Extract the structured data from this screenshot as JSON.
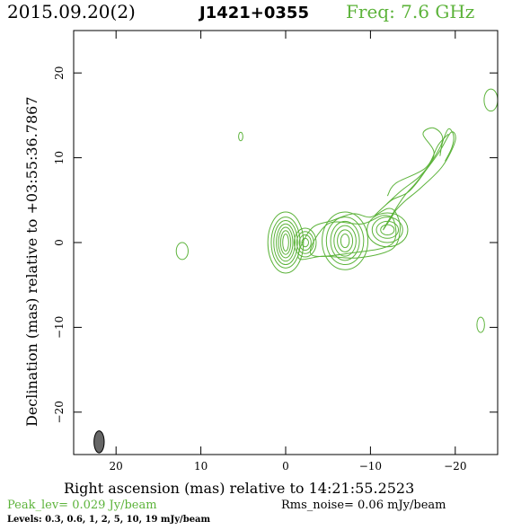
{
  "header": {
    "date": "2015.09.20(2)",
    "source": "J1421+0355",
    "freq": "Freq: 7.6 GHz"
  },
  "footer": {
    "peak": "Peak_lev=  0.029 Jy/beam",
    "rms": "Rms_noise= 0.06 mJy/beam",
    "levels": "Levels: 0.3, 0.6,    1,    2,    5,   10,   19 mJy/beam"
  },
  "colors": {
    "contour": "#5cb33a",
    "beam": "#666666",
    "axes": "#000000"
  },
  "chart_data": {
    "type": "contour",
    "xlabel": "Right ascension (mas) relative to 14:21:55.2523",
    "ylabel": "Declination (mas) relative to +03:55:36.7867",
    "xlim": [
      25,
      -25
    ],
    "ylim": [
      -25,
      25
    ],
    "xticks": [
      20,
      10,
      0,
      -10,
      -20
    ],
    "xtick_labels": [
      "20",
      "10",
      "0",
      "−10",
      "−20"
    ],
    "yticks": [
      20,
      10,
      0,
      -10,
      -20
    ],
    "ytick_labels": [
      "20",
      "10",
      "0",
      "−10",
      "−20"
    ],
    "contour_levels_mJy": [
      0.3,
      0.6,
      1,
      2,
      5,
      10,
      19
    ],
    "beam": {
      "x": 22,
      "y": -23.5,
      "major": 2.6,
      "minor": 1.2
    },
    "components": [
      {
        "name": "core",
        "x": 0.0,
        "y": 0.0,
        "rx": [
          0.35,
          0.6,
          0.85,
          1.1,
          1.4,
          1.7,
          2.1
        ],
        "ry": [
          1.0,
          1.4,
          1.8,
          2.2,
          2.6,
          3.0,
          3.6
        ]
      },
      {
        "name": "core-east-knot",
        "x": -2.3,
        "y": 0.0,
        "rx": [
          0.4,
          0.7,
          1.0,
          1.3
        ],
        "ry": [
          0.5,
          0.9,
          1.3,
          1.7
        ]
      },
      {
        "name": "knot-b",
        "x": -7.0,
        "y": 0.2,
        "rx": [
          0.5,
          0.9,
          1.3,
          1.7,
          2.2,
          2.7
        ],
        "ry": [
          0.8,
          1.3,
          1.8,
          2.3,
          2.8,
          3.4
        ]
      },
      {
        "name": "knot-c",
        "x": -12.0,
        "y": 1.5,
        "rx": [
          0.8,
          1.3,
          1.8,
          2.4
        ],
        "ry": [
          0.6,
          1.0,
          1.5,
          2.0
        ]
      },
      {
        "name": "isolated-east",
        "x": 12.2,
        "y": -1.0,
        "rx": [
          0.7
        ],
        "ry": [
          1.0
        ]
      },
      {
        "name": "isolated-north",
        "x": 5.3,
        "y": 12.5,
        "rx": [
          0.25
        ],
        "ry": [
          0.5
        ]
      },
      {
        "name": "isolated-south",
        "x": -23.0,
        "y": -9.7,
        "rx": [
          0.45
        ],
        "ry": [
          0.9
        ]
      },
      {
        "name": "edge-northwest",
        "x": -24.2,
        "y": 16.8,
        "rx": [
          0.8
        ],
        "ry": [
          1.3
        ]
      }
    ],
    "jet_paths": [
      [
        [
          -1.5,
          -1.8
        ],
        [
          -4.5,
          -1.6
        ],
        [
          -8.5,
          -1.8
        ],
        [
          -12.5,
          -0.8
        ],
        [
          -13.5,
          1.5
        ],
        [
          -13.0,
          3.5
        ],
        [
          -12.0,
          4.0
        ],
        [
          -10.0,
          3.0
        ],
        [
          -8.0,
          3.4
        ],
        [
          -5.5,
          2.6
        ],
        [
          -3.0,
          1.6
        ]
      ],
      [
        [
          -3.0,
          -1.4
        ],
        [
          -8.0,
          -1.2
        ],
        [
          -12.5,
          -0.2
        ],
        [
          -12.8,
          2.5
        ],
        [
          -11.5,
          3.2
        ],
        [
          -9.0,
          2.2
        ],
        [
          -5.0,
          2.2
        ]
      ],
      [
        [
          -11.5,
          1.5
        ],
        [
          -12.5,
          3.2
        ],
        [
          -14.0,
          5.5
        ],
        [
          -15.5,
          7.2
        ],
        [
          -18.0,
          10.5
        ],
        [
          -19.5,
          13.0
        ],
        [
          -20.0,
          12.0
        ],
        [
          -18.5,
          9.0
        ],
        [
          -16.0,
          6.5
        ],
        [
          -14.2,
          5.0
        ],
        [
          -13.0,
          3.8
        ],
        [
          -12.5,
          3.0
        ]
      ],
      [
        [
          -10.5,
          3.2
        ],
        [
          -12.5,
          5.0
        ],
        [
          -14.5,
          6.0
        ],
        [
          -16.5,
          8.5
        ],
        [
          -18.5,
          12.0
        ],
        [
          -17.5,
          13.5
        ],
        [
          -16.2,
          12.8
        ],
        [
          -17.5,
          10.5
        ],
        [
          -16.0,
          8.0
        ],
        [
          -13.5,
          6.0
        ]
      ],
      [
        [
          -12.0,
          5.5
        ],
        [
          -13.0,
          7.0
        ],
        [
          -16.5,
          8.8
        ],
        [
          -18.0,
          11.5
        ],
        [
          -19.2,
          12.8
        ]
      ],
      [
        [
          -18.8,
          9.6
        ],
        [
          -19.6,
          11.2
        ],
        [
          -19.8,
          12.6
        ],
        [
          -19.2,
          13.4
        ],
        [
          -18.5,
          11.8
        ],
        [
          -18.2,
          10.2
        ]
      ]
    ]
  }
}
